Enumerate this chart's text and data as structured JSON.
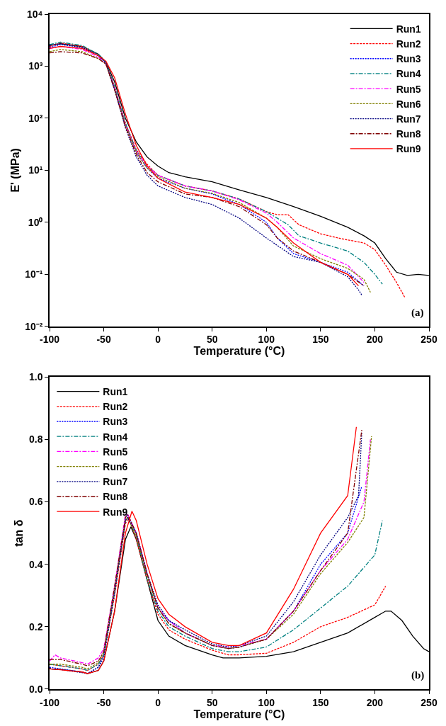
{
  "chart_data": [
    {
      "type": "line",
      "ylabel": "E' (MPa)",
      "xlabel": "Temperature (°C)",
      "log": "y",
      "legend": "top right",
      "xlim": [
        -100,
        250
      ],
      "xticks": [
        -100,
        -50,
        0,
        50,
        100,
        150,
        200,
        250
      ],
      "ylim": [
        0.01,
        10000
      ],
      "yticks": [
        {
          "value": 0.01,
          "label": "10⁻²"
        },
        {
          "value": 0.1,
          "label": "10⁻¹"
        },
        {
          "value": 1,
          "label": "10⁰"
        },
        {
          "value": 10,
          "label": "10¹"
        },
        {
          "value": 100,
          "label": "10²"
        },
        {
          "value": 1000,
          "label": "10³"
        },
        {
          "value": 10000,
          "label": "10⁴"
        }
      ],
      "annotations": [
        "(a)"
      ],
      "series": [
        {
          "name": "Run1",
          "color": "#000000",
          "line_style": "solid",
          "x": [
            -100,
            -90,
            -70,
            -55,
            -48,
            -40,
            -30,
            -20,
            -10,
            0,
            10,
            25,
            50,
            75,
            100,
            125,
            150,
            175,
            190,
            200,
            210,
            220,
            230,
            240,
            250
          ],
          "values": [
            2500,
            2700,
            2400,
            1700,
            1200,
            500,
            100,
            35,
            18,
            12,
            9,
            7.5,
            6,
            4.2,
            3,
            2,
            1.3,
            0.8,
            0.55,
            0.4,
            0.2,
            0.11,
            0.095,
            0.1,
            0.095
          ]
        },
        {
          "name": "Run2",
          "color": "#ff0000",
          "line_style": "dashed",
          "x": [
            -100,
            -90,
            -70,
            -55,
            -48,
            -40,
            -30,
            -20,
            -10,
            0,
            25,
            50,
            75,
            100,
            110,
            120,
            130,
            150,
            170,
            190,
            200,
            210,
            220,
            228
          ],
          "values": [
            2400,
            2800,
            2400,
            1600,
            1200,
            400,
            80,
            25,
            13,
            8,
            5,
            4,
            2.8,
            1.6,
            1.4,
            1.4,
            0.9,
            0.6,
            0.48,
            0.4,
            0.3,
            0.15,
            0.07,
            0.035
          ]
        },
        {
          "name": "Run3",
          "color": "#0000ff",
          "line_style": "dotted",
          "x": [
            -100,
            -90,
            -70,
            -55,
            -48,
            -40,
            -30,
            -20,
            -10,
            0,
            25,
            50,
            75,
            100,
            110,
            125,
            150,
            175,
            190
          ],
          "values": [
            2300,
            2600,
            2300,
            1600,
            1150,
            380,
            75,
            22,
            11,
            7,
            4.5,
            3.5,
            2.2,
            1.0,
            0.5,
            0.25,
            0.17,
            0.11,
            0.06
          ]
        },
        {
          "name": "Run4",
          "color": "#008080",
          "line_style": "dashdot",
          "x": [
            -100,
            -90,
            -70,
            -55,
            -48,
            -40,
            -30,
            -20,
            -10,
            0,
            25,
            50,
            75,
            100,
            120,
            130,
            150,
            175,
            190,
            200,
            207
          ],
          "values": [
            2600,
            2900,
            2500,
            1700,
            1200,
            400,
            80,
            24,
            12,
            8,
            5,
            4,
            2.8,
            1.6,
            0.9,
            0.55,
            0.4,
            0.28,
            0.17,
            0.1,
            0.065
          ]
        },
        {
          "name": "Run5",
          "color": "#ff00ff",
          "line_style": "dashdot",
          "x": [
            -100,
            -90,
            -70,
            -55,
            -48,
            -40,
            -30,
            -20,
            -10,
            0,
            25,
            50,
            75,
            100,
            110,
            125,
            150,
            175,
            190
          ],
          "values": [
            2200,
            2400,
            2100,
            1500,
            1100,
            380,
            75,
            23,
            12,
            8,
            5,
            4,
            2.7,
            1.5,
            1.0,
            0.5,
            0.25,
            0.15,
            0.07
          ]
        },
        {
          "name": "Run6",
          "color": "#808000",
          "line_style": "dashed",
          "x": [
            -100,
            -90,
            -70,
            -55,
            -48,
            -40,
            -30,
            -20,
            -10,
            0,
            25,
            50,
            75,
            100,
            110,
            125,
            150,
            175,
            190,
            196
          ],
          "values": [
            1900,
            2100,
            1900,
            1400,
            1100,
            360,
            72,
            22,
            11,
            7.5,
            4.5,
            3.6,
            2.4,
            1.2,
            0.8,
            0.35,
            0.2,
            0.13,
            0.08,
            0.045
          ]
        },
        {
          "name": "Run7",
          "color": "#000080",
          "line_style": "dotted",
          "x": [
            -100,
            -90,
            -70,
            -55,
            -48,
            -40,
            -30,
            -20,
            -10,
            0,
            25,
            50,
            75,
            100,
            125,
            150,
            175,
            185,
            188
          ],
          "values": [
            2500,
            2700,
            2300,
            1600,
            1150,
            350,
            65,
            18,
            8,
            5,
            3,
            2.2,
            1.2,
            0.5,
            0.22,
            0.17,
            0.09,
            0.05,
            0.04
          ]
        },
        {
          "name": "Run8",
          "color": "#800000",
          "line_style": "dashdot",
          "x": [
            -100,
            -90,
            -70,
            -55,
            -48,
            -40,
            -30,
            -20,
            -10,
            0,
            25,
            50,
            75,
            100,
            110,
            125,
            150,
            175,
            190
          ],
          "values": [
            1800,
            1900,
            1800,
            1400,
            1100,
            350,
            68,
            20,
            9,
            6,
            3.5,
            3,
            2,
            0.9,
            0.5,
            0.28,
            0.17,
            0.1,
            0.06
          ]
        },
        {
          "name": "Run9",
          "color": "#ff0000",
          "line_style": "solid",
          "x": [
            -100,
            -90,
            -70,
            -55,
            -48,
            -40,
            -30,
            -20,
            -10,
            0,
            25,
            50,
            75,
            100,
            110,
            125,
            150,
            175,
            185
          ],
          "values": [
            2200,
            2400,
            2200,
            1600,
            1250,
            600,
            120,
            30,
            12,
            7,
            3.8,
            3,
            2.2,
            1.2,
            0.8,
            0.4,
            0.17,
            0.1,
            0.06
          ]
        }
      ]
    },
    {
      "type": "line",
      "ylabel": "tan δ",
      "xlabel": "Temperature (°C)",
      "legend": "top left",
      "xlim": [
        -100,
        250
      ],
      "xticks": [
        -100,
        -50,
        0,
        50,
        100,
        150,
        200,
        250
      ],
      "ylim": [
        0,
        1
      ],
      "yticks": [
        {
          "value": 0,
          "label": "0.0"
        },
        0.2,
        0.4,
        0.6,
        0.8,
        {
          "value": 1,
          "label": "1.0"
        }
      ],
      "annotations": [
        "(b)"
      ],
      "series": [
        {
          "name": "Run1",
          "color": "#000000",
          "line_style": "solid",
          "x": [
            -100,
            -99,
            -90,
            -70,
            -65,
            -55,
            -50,
            -40,
            -30,
            -25,
            -20,
            -10,
            0,
            10,
            25,
            50,
            60,
            75,
            100,
            125,
            150,
            175,
            200,
            210,
            215,
            225,
            235,
            245,
            250
          ],
          "values": [
            0.07,
            0.065,
            0.063,
            0.055,
            0.05,
            0.06,
            0.09,
            0.25,
            0.48,
            0.52,
            0.48,
            0.35,
            0.22,
            0.17,
            0.14,
            0.11,
            0.1,
            0.1,
            0.105,
            0.12,
            0.15,
            0.18,
            0.23,
            0.25,
            0.25,
            0.22,
            0.17,
            0.13,
            0.12
          ]
        },
        {
          "name": "Run2",
          "color": "#ff0000",
          "line_style": "dashed",
          "x": [
            -100,
            -90,
            -70,
            -65,
            -55,
            -50,
            -40,
            -30,
            -27,
            -20,
            -10,
            0,
            10,
            25,
            50,
            65,
            75,
            100,
            125,
            150,
            175,
            200,
            210
          ],
          "values": [
            0.08,
            0.075,
            0.065,
            0.06,
            0.08,
            0.11,
            0.3,
            0.53,
            0.55,
            0.48,
            0.35,
            0.24,
            0.19,
            0.16,
            0.125,
            0.11,
            0.11,
            0.115,
            0.15,
            0.2,
            0.23,
            0.27,
            0.33
          ]
        },
        {
          "name": "Run3",
          "color": "#0000ff",
          "line_style": "dotted",
          "x": [
            -100,
            -90,
            -70,
            -65,
            -55,
            -50,
            -40,
            -30,
            -28,
            -20,
            -10,
            0,
            10,
            25,
            50,
            65,
            75,
            100,
            125,
            150,
            175,
            188
          ],
          "values": [
            0.07,
            0.065,
            0.055,
            0.05,
            0.07,
            0.11,
            0.32,
            0.55,
            0.56,
            0.5,
            0.37,
            0.26,
            0.22,
            0.18,
            0.14,
            0.13,
            0.135,
            0.16,
            0.25,
            0.4,
            0.5,
            0.65
          ]
        },
        {
          "name": "Run4",
          "color": "#008080",
          "line_style": "dashdot",
          "x": [
            -100,
            -90,
            -70,
            -65,
            -55,
            -50,
            -40,
            -30,
            -28,
            -20,
            -10,
            0,
            10,
            25,
            50,
            65,
            75,
            100,
            125,
            150,
            175,
            200,
            207
          ],
          "values": [
            0.08,
            0.075,
            0.065,
            0.06,
            0.08,
            0.11,
            0.31,
            0.54,
            0.55,
            0.49,
            0.35,
            0.25,
            0.2,
            0.17,
            0.13,
            0.12,
            0.12,
            0.135,
            0.19,
            0.26,
            0.33,
            0.43,
            0.54
          ]
        },
        {
          "name": "Run5",
          "color": "#ff00ff",
          "line_style": "dashdot",
          "x": [
            -100,
            -95,
            -90,
            -70,
            -65,
            -55,
            -50,
            -40,
            -30,
            -28,
            -20,
            -10,
            0,
            10,
            25,
            50,
            65,
            75,
            100,
            125,
            150,
            175,
            190,
            196
          ],
          "values": [
            0.09,
            0.11,
            0.1,
            0.085,
            0.08,
            0.1,
            0.13,
            0.33,
            0.56,
            0.56,
            0.5,
            0.37,
            0.26,
            0.22,
            0.18,
            0.14,
            0.135,
            0.14,
            0.16,
            0.25,
            0.38,
            0.48,
            0.6,
            0.8
          ]
        },
        {
          "name": "Run6",
          "color": "#808000",
          "line_style": "dashed",
          "x": [
            -100,
            -90,
            -70,
            -65,
            -55,
            -50,
            -40,
            -30,
            -28,
            -20,
            -10,
            0,
            10,
            25,
            50,
            65,
            75,
            100,
            125,
            150,
            175,
            190,
            197
          ],
          "values": [
            0.08,
            0.08,
            0.07,
            0.065,
            0.085,
            0.12,
            0.32,
            0.54,
            0.55,
            0.49,
            0.36,
            0.26,
            0.21,
            0.18,
            0.14,
            0.13,
            0.135,
            0.16,
            0.24,
            0.37,
            0.47,
            0.55,
            0.81
          ]
        },
        {
          "name": "Run7",
          "color": "#000080",
          "line_style": "dotted",
          "x": [
            -100,
            -90,
            -70,
            -65,
            -55,
            -50,
            -40,
            -30,
            -28,
            -20,
            -10,
            0,
            10,
            25,
            50,
            65,
            75,
            100,
            125,
            150,
            175,
            185,
            188
          ],
          "values": [
            0.065,
            0.063,
            0.053,
            0.05,
            0.07,
            0.1,
            0.31,
            0.54,
            0.55,
            0.5,
            0.37,
            0.27,
            0.22,
            0.19,
            0.145,
            0.135,
            0.14,
            0.17,
            0.28,
            0.43,
            0.55,
            0.62,
            0.82
          ]
        },
        {
          "name": "Run8",
          "color": "#800000",
          "line_style": "dashdot",
          "x": [
            -100,
            -90,
            -70,
            -65,
            -55,
            -50,
            -40,
            -30,
            -28,
            -20,
            -10,
            0,
            10,
            25,
            50,
            65,
            75,
            100,
            125,
            150,
            175,
            188
          ],
          "values": [
            0.095,
            0.095,
            0.08,
            0.075,
            0.09,
            0.12,
            0.33,
            0.55,
            0.56,
            0.5,
            0.37,
            0.26,
            0.21,
            0.18,
            0.14,
            0.13,
            0.135,
            0.16,
            0.25,
            0.38,
            0.5,
            0.83
          ]
        },
        {
          "name": "Run9",
          "color": "#ff0000",
          "line_style": "solid",
          "x": [
            -100,
            -90,
            -70,
            -65,
            -55,
            -50,
            -40,
            -30,
            -24,
            -20,
            -10,
            0,
            10,
            25,
            50,
            65,
            75,
            100,
            125,
            150,
            175,
            183
          ],
          "values": [
            0.065,
            0.062,
            0.055,
            0.05,
            0.06,
            0.09,
            0.25,
            0.5,
            0.57,
            0.54,
            0.4,
            0.29,
            0.24,
            0.2,
            0.15,
            0.14,
            0.14,
            0.18,
            0.32,
            0.5,
            0.62,
            0.84
          ]
        }
      ]
    }
  ]
}
